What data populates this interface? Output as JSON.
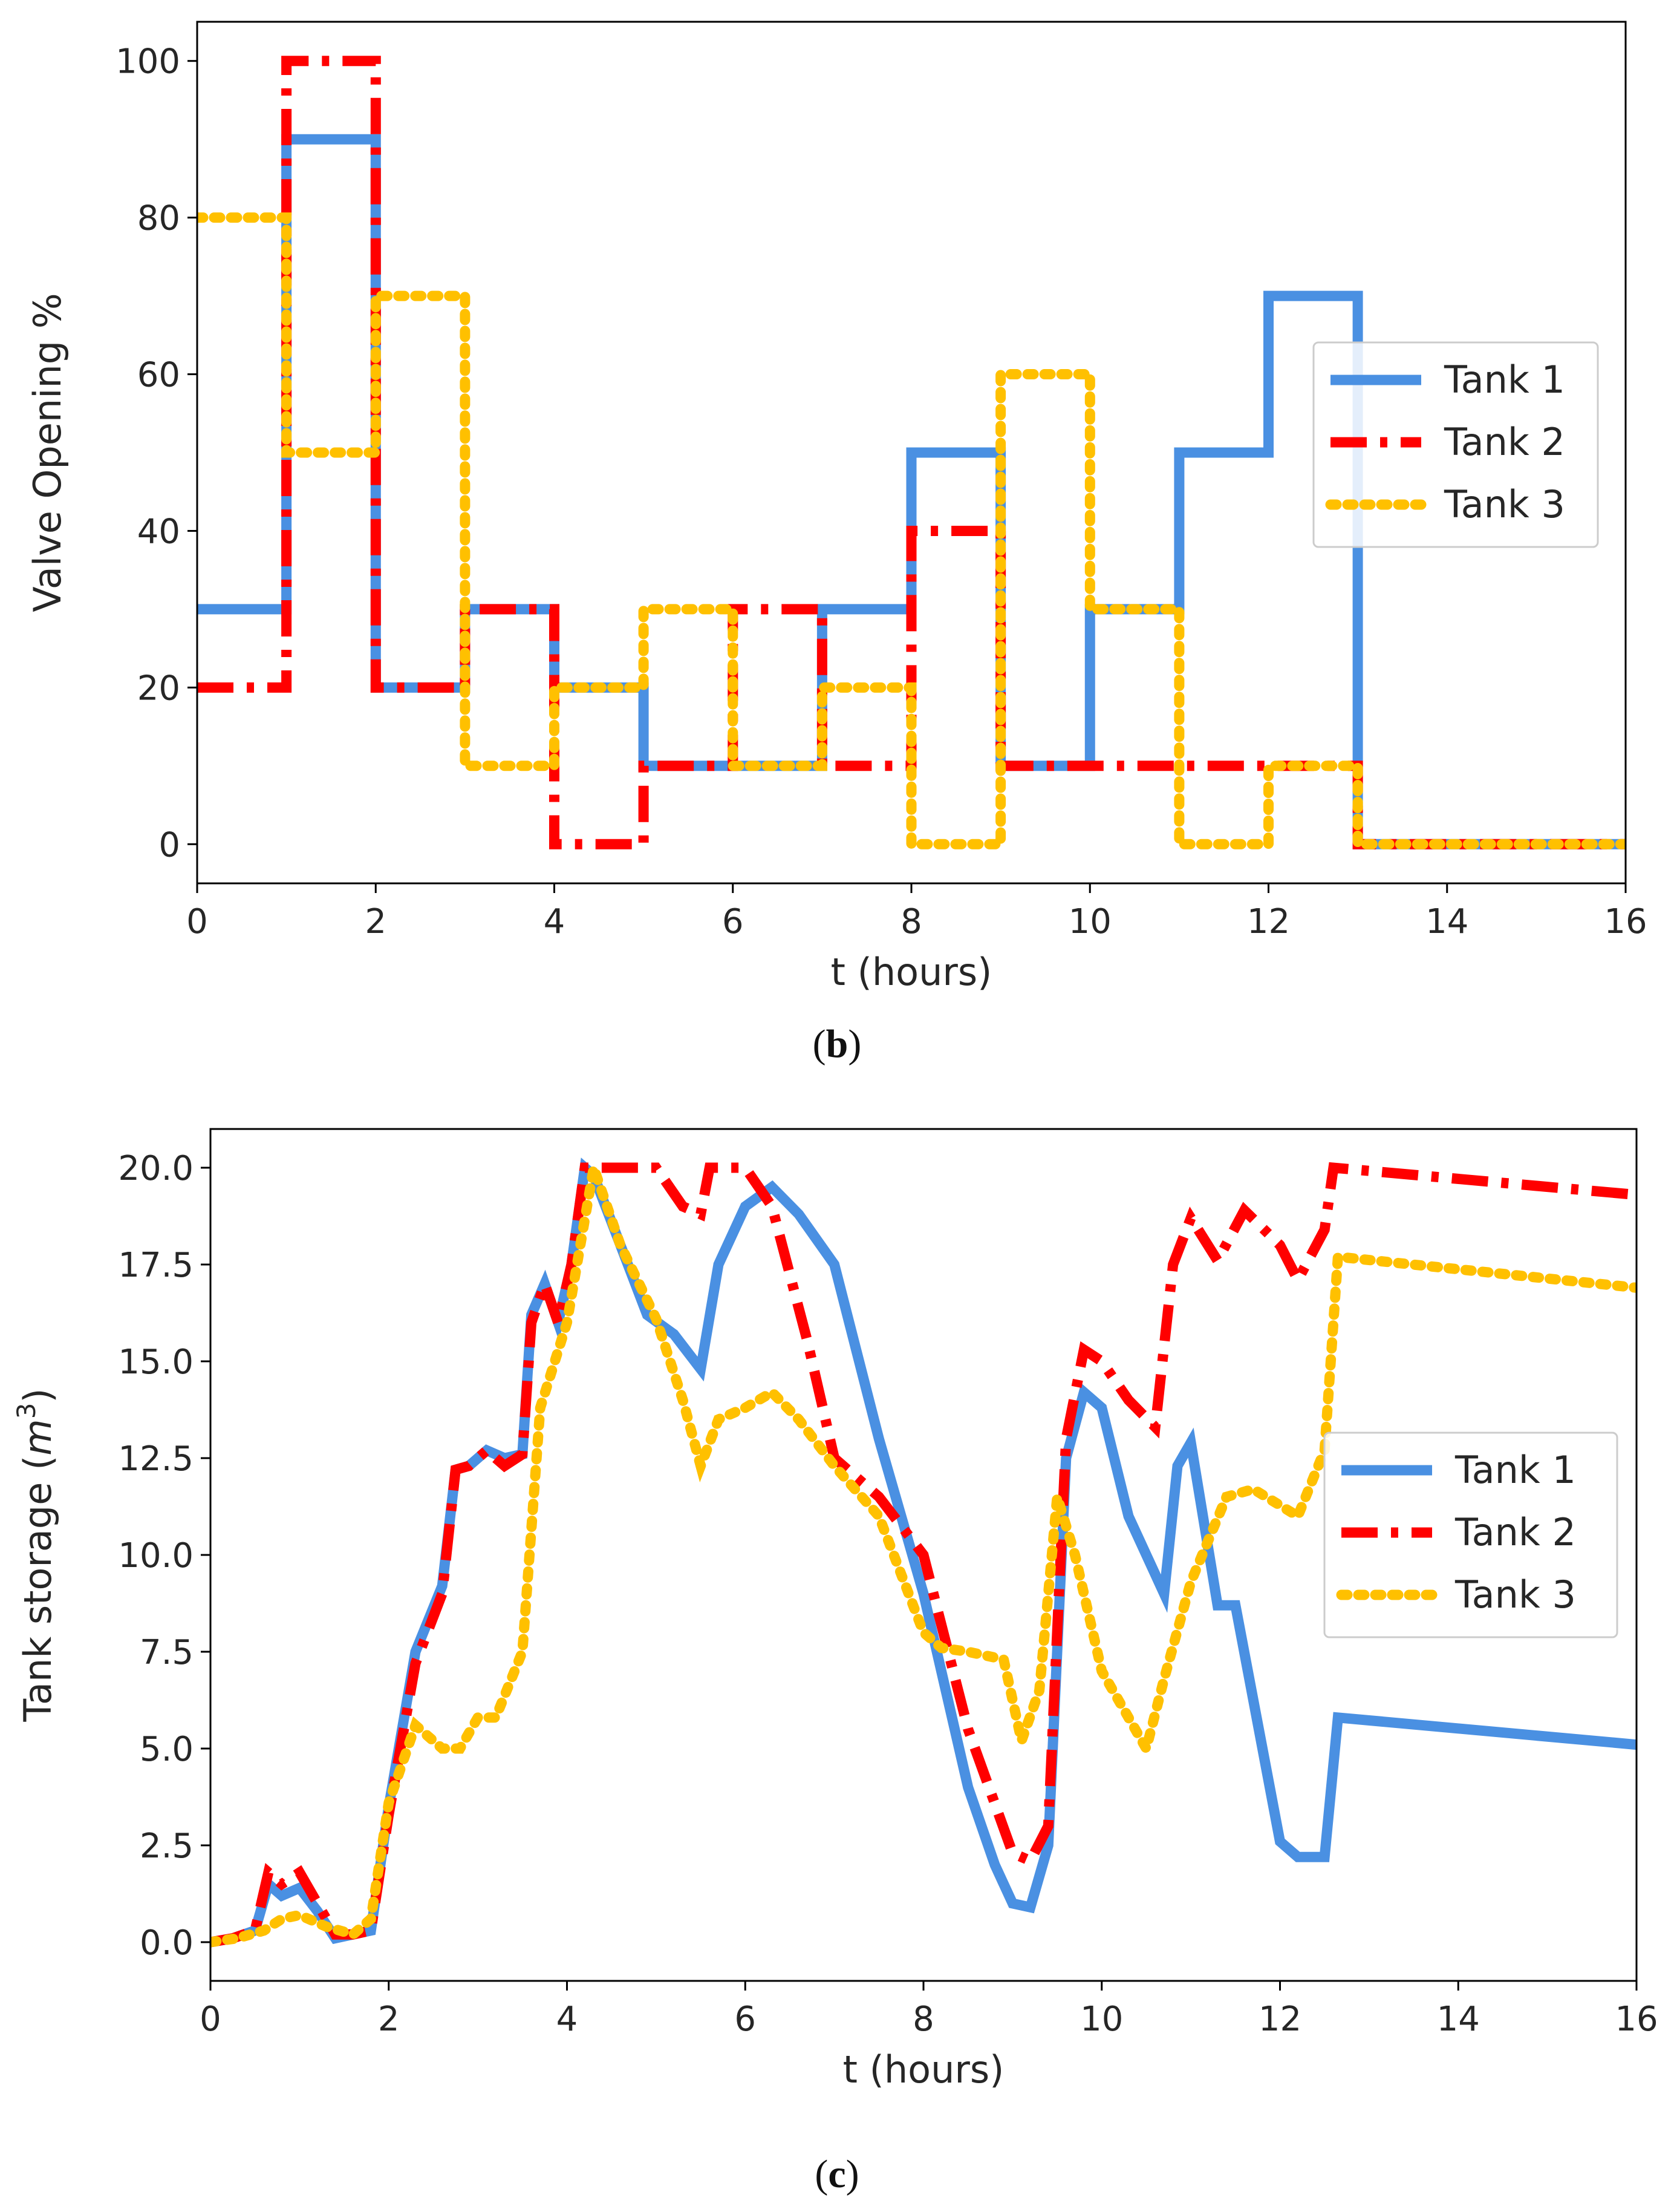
{
  "chart_data": [
    {
      "type": "line",
      "panel": "b",
      "title": "",
      "xlabel": "t (hours)",
      "ylabel": "Valve Opening %",
      "xlim": [
        0,
        16
      ],
      "ylim": [
        -5,
        105
      ],
      "xticks": [
        0,
        2,
        4,
        6,
        8,
        10,
        12,
        14,
        16
      ],
      "yticks": [
        0,
        20,
        40,
        60,
        80,
        100
      ],
      "grid": false,
      "legend_position": "center-right",
      "series": [
        {
          "name": "Tank 1",
          "color": "#4a90e2",
          "style": "solid",
          "x": [
            0,
            1,
            1,
            2,
            2,
            3,
            3,
            4,
            4,
            5,
            5,
            6,
            6,
            7,
            7,
            8,
            8,
            9,
            9,
            10,
            10,
            11,
            11,
            12,
            12,
            13,
            13,
            14,
            14,
            15,
            15,
            16
          ],
          "y": [
            30,
            30,
            90,
            90,
            20,
            20,
            30,
            30,
            20,
            20,
            10,
            10,
            10,
            10,
            30,
            30,
            50,
            50,
            10,
            10,
            30,
            30,
            50,
            50,
            70,
            70,
            0,
            0,
            0,
            0,
            0,
            0
          ]
        },
        {
          "name": "Tank 2",
          "color": "#ff0000",
          "style": "dashdot",
          "x": [
            0,
            1,
            1,
            2,
            2,
            3,
            3,
            4,
            4,
            5,
            5,
            6,
            6,
            7,
            7,
            8,
            8,
            9,
            9,
            10,
            10,
            11,
            11,
            12,
            12,
            13,
            13,
            14,
            14,
            15,
            15,
            16
          ],
          "y": [
            20,
            20,
            100,
            100,
            20,
            20,
            30,
            30,
            0,
            0,
            10,
            10,
            30,
            30,
            10,
            10,
            40,
            40,
            10,
            10,
            10,
            10,
            10,
            10,
            10,
            10,
            0,
            0,
            0,
            0,
            0,
            0
          ]
        },
        {
          "name": "Tank 3",
          "color": "#ffc000",
          "style": "dotted",
          "x": [
            0,
            1,
            1,
            2,
            2,
            3,
            3,
            4,
            4,
            5,
            5,
            6,
            6,
            7,
            7,
            8,
            8,
            9,
            9,
            10,
            10,
            11,
            11,
            12,
            12,
            13,
            13,
            14,
            14,
            15,
            15,
            16
          ],
          "y": [
            80,
            80,
            50,
            50,
            70,
            70,
            10,
            10,
            20,
            20,
            30,
            30,
            10,
            10,
            20,
            20,
            0,
            0,
            60,
            60,
            30,
            30,
            0,
            0,
            10,
            10,
            0,
            0,
            0,
            0,
            0,
            0
          ]
        }
      ]
    },
    {
      "type": "line",
      "panel": "c",
      "title": "",
      "xlabel": "t (hours)",
      "ylabel": "Tank storage (m3)",
      "xlim": [
        0,
        16
      ],
      "ylim": [
        -1,
        21
      ],
      "xticks": [
        0,
        2,
        4,
        6,
        8,
        10,
        12,
        14,
        16
      ],
      "yticks": [
        0.0,
        2.5,
        5.0,
        7.5,
        10.0,
        12.5,
        15.0,
        17.5,
        20.0
      ],
      "ytick_labels": [
        "0.0",
        "2.5",
        "5.0",
        "7.5",
        "10.0",
        "12.5",
        "15.0",
        "17.5",
        "20.0"
      ],
      "grid": false,
      "legend_position": "center-right",
      "series": [
        {
          "name": "Tank 1",
          "color": "#4a90e2",
          "style": "solid",
          "x": [
            0,
            0.25,
            0.5,
            0.65,
            0.8,
            1.0,
            1.2,
            1.4,
            1.6,
            1.8,
            2.0,
            2.3,
            2.6,
            2.75,
            2.9,
            3.1,
            3.3,
            3.5,
            3.6,
            3.75,
            3.9,
            4.05,
            4.2,
            4.3,
            4.6,
            4.9,
            5.2,
            5.5,
            5.7,
            6.0,
            6.3,
            6.6,
            7.0,
            7.5,
            8.0,
            8.5,
            8.8,
            9.0,
            9.2,
            9.4,
            9.6,
            9.8,
            10.0,
            10.3,
            10.7,
            10.85,
            11.0,
            11.3,
            11.5,
            12.0,
            12.2,
            12.35,
            12.5,
            12.65,
            16
          ],
          "y": [
            0,
            0.1,
            0.3,
            1.5,
            1.2,
            1.4,
            0.8,
            0.1,
            0.2,
            0.3,
            3.5,
            7.5,
            9.2,
            12.2,
            12.3,
            12.7,
            12.5,
            12.6,
            16.2,
            17.0,
            16.0,
            17.5,
            20.0,
            19.8,
            18.0,
            16.2,
            15.7,
            14.8,
            17.5,
            19.0,
            19.5,
            18.8,
            17.5,
            13.0,
            9.0,
            4.0,
            2.0,
            1.0,
            0.9,
            2.5,
            12.5,
            14.2,
            13.8,
            11.0,
            9.0,
            12.3,
            12.9,
            8.7,
            8.7,
            2.6,
            2.2,
            2.2,
            2.2,
            5.8,
            5.1
          ]
        },
        {
          "name": "Tank 2",
          "color": "#ff0000",
          "style": "dashdot",
          "x": [
            0,
            0.25,
            0.5,
            0.65,
            0.8,
            1.0,
            1.2,
            1.4,
            1.6,
            1.8,
            2.0,
            2.3,
            2.6,
            2.75,
            2.9,
            3.1,
            3.3,
            3.5,
            3.6,
            3.75,
            3.9,
            4.05,
            4.2,
            4.5,
            5.0,
            5.3,
            5.5,
            5.6,
            6.0,
            6.3,
            6.7,
            7.0,
            7.5,
            8.0,
            8.5,
            9.0,
            9.2,
            9.4,
            9.6,
            9.8,
            10.0,
            10.3,
            10.6,
            10.8,
            11.0,
            11.3,
            11.6,
            12.0,
            12.2,
            12.5,
            12.6,
            16
          ],
          "y": [
            0,
            0.1,
            0.3,
            1.8,
            1.5,
            1.8,
            1.0,
            0.2,
            0.2,
            0.3,
            3.3,
            7.2,
            9.0,
            12.2,
            12.3,
            12.7,
            12.3,
            12.6,
            16.0,
            17.0,
            16.0,
            17.5,
            20.0,
            20.0,
            20.0,
            19.0,
            18.8,
            20.0,
            20.0,
            19.0,
            15.5,
            12.5,
            11.5,
            10.0,
            5.5,
            2.3,
            2.1,
            3.0,
            13.0,
            15.3,
            15.0,
            14.0,
            13.3,
            17.5,
            18.7,
            17.6,
            18.9,
            18.0,
            17.1,
            18.4,
            20.0,
            19.3
          ]
        },
        {
          "name": "Tank 3",
          "color": "#ffc000",
          "style": "dotted",
          "x": [
            0,
            0.3,
            0.6,
            0.8,
            1.0,
            1.3,
            1.6,
            1.8,
            2.0,
            2.3,
            2.6,
            2.8,
            3.0,
            3.2,
            3.5,
            3.7,
            4.0,
            4.3,
            4.6,
            5.0,
            5.3,
            5.5,
            5.7,
            6.0,
            6.3,
            6.6,
            7.0,
            7.5,
            8.0,
            8.2,
            8.5,
            8.9,
            9.1,
            9.3,
            9.5,
            9.7,
            10.0,
            10.3,
            10.5,
            10.7,
            11.0,
            11.4,
            11.7,
            12.2,
            12.5,
            12.65,
            16
          ],
          "y": [
            0,
            0.1,
            0.3,
            0.6,
            0.7,
            0.4,
            0.2,
            0.6,
            3.6,
            5.6,
            5.0,
            5.0,
            5.8,
            5.8,
            7.5,
            13.8,
            16.0,
            20.0,
            18.0,
            16.1,
            14.0,
            12.3,
            13.5,
            13.8,
            14.2,
            13.5,
            12.3,
            11.0,
            8.0,
            7.6,
            7.5,
            7.3,
            5.2,
            6.5,
            11.5,
            10.0,
            7.0,
            5.8,
            5.0,
            6.8,
            9.3,
            11.5,
            11.7,
            11.0,
            12.7,
            17.7,
            16.9
          ]
        }
      ]
    }
  ],
  "captions": {
    "b_open": "(",
    "b_letter": "b",
    "b_close": ")",
    "c_open": "(",
    "c_letter": "c",
    "c_close": ")"
  }
}
